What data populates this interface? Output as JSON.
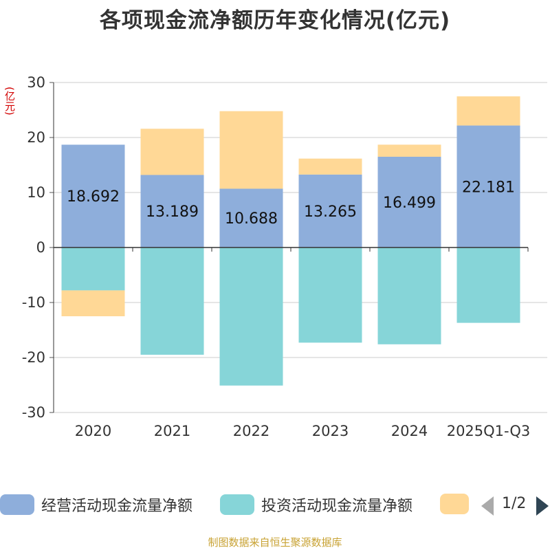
{
  "title": "各项现金流净额历年变化情况(亿元)",
  "unit_label": "(亿元)",
  "source": "制图数据来自恒生聚源数据库",
  "legend": {
    "items": [
      {
        "label": "经营活动现金流量净额",
        "color": "#8eaedb"
      },
      {
        "label": "投资活动现金流量净额",
        "color": "#86d5d8"
      },
      {
        "label": "",
        "color": "#ffd896"
      }
    ],
    "page": "1/2"
  },
  "chart_data": {
    "type": "bar",
    "stacked": true,
    "categories": [
      "2020",
      "2021",
      "2022",
      "2023",
      "2024",
      "2025Q1-Q3"
    ],
    "ylim": [
      -30,
      30
    ],
    "yticks": [
      30,
      20,
      10,
      0,
      -10,
      -20,
      -30
    ],
    "series": [
      {
        "name": "经营活动现金流量净额",
        "color": "#8eaedb",
        "values": [
          18.692,
          13.189,
          10.688,
          13.265,
          16.499,
          22.181
        ]
      },
      {
        "name": "投资活动现金流量净额",
        "color": "#86d5d8",
        "values": [
          -7.8,
          -19.5,
          -25.1,
          -17.3,
          -17.6,
          -13.7
        ]
      },
      {
        "color": "#ffd896",
        "values": [
          -4.7,
          8.4,
          14.1,
          2.9,
          2.2,
          5.3
        ]
      }
    ],
    "data_labels": [
      "18.692",
      "13.189",
      "10.688",
      "13.265",
      "16.499",
      "22.181"
    ],
    "grid": true,
    "legend_position": "bottom"
  }
}
